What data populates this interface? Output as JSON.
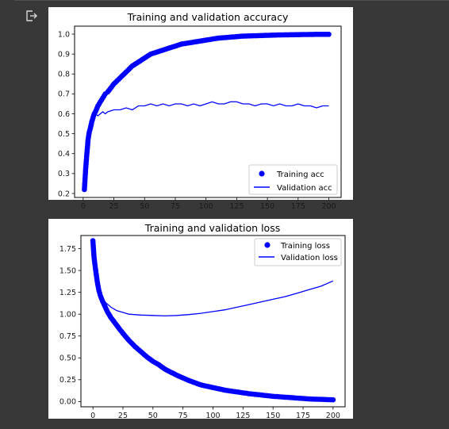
{
  "output": {
    "icon": "output-redirect-icon"
  },
  "colors": {
    "series": "#0000ff",
    "panel": "#ffffff",
    "page": "#383838"
  },
  "chart_data": [
    {
      "type": "line",
      "title": "Training and validation accuracy",
      "xlabel": "",
      "ylabel": "",
      "xlim": [
        -7,
        210
      ],
      "ylim": [
        0.18,
        1.04
      ],
      "xticks": [
        "0",
        "25",
        "50",
        "75",
        "100",
        "125",
        "150",
        "175",
        "200"
      ],
      "yticks": [
        "0.2",
        "0.3",
        "0.4",
        "0.5",
        "0.6",
        "0.7",
        "0.8",
        "0.9",
        "1.0"
      ],
      "legend_position": "bottom-right",
      "series": [
        {
          "name": "Training acc",
          "style": "dots",
          "x": [
            1,
            2,
            3,
            4,
            5,
            6,
            7,
            8,
            9,
            10,
            12,
            14,
            16,
            18,
            20,
            25,
            30,
            35,
            40,
            45,
            50,
            55,
            60,
            70,
            80,
            90,
            100,
            110,
            120,
            130,
            140,
            150,
            160,
            170,
            180,
            190,
            200
          ],
          "values": [
            0.22,
            0.32,
            0.4,
            0.47,
            0.51,
            0.53,
            0.56,
            0.58,
            0.6,
            0.61,
            0.64,
            0.66,
            0.68,
            0.7,
            0.71,
            0.75,
            0.78,
            0.81,
            0.84,
            0.86,
            0.88,
            0.9,
            0.91,
            0.93,
            0.95,
            0.96,
            0.97,
            0.98,
            0.985,
            0.99,
            0.992,
            0.994,
            0.996,
            0.997,
            0.998,
            0.999,
            0.999
          ]
        },
        {
          "name": "Validation acc",
          "style": "line",
          "x": [
            1,
            2,
            3,
            4,
            5,
            6,
            8,
            10,
            12,
            14,
            16,
            18,
            20,
            25,
            30,
            35,
            40,
            45,
            50,
            55,
            60,
            65,
            70,
            75,
            80,
            85,
            90,
            95,
            100,
            105,
            110,
            115,
            120,
            125,
            130,
            135,
            140,
            145,
            150,
            155,
            160,
            165,
            170,
            175,
            180,
            185,
            190,
            195,
            200
          ],
          "values": [
            0.36,
            0.43,
            0.49,
            0.52,
            0.55,
            0.57,
            0.58,
            0.6,
            0.59,
            0.6,
            0.61,
            0.6,
            0.61,
            0.62,
            0.62,
            0.63,
            0.62,
            0.64,
            0.64,
            0.65,
            0.64,
            0.65,
            0.64,
            0.65,
            0.65,
            0.64,
            0.65,
            0.64,
            0.65,
            0.66,
            0.65,
            0.65,
            0.66,
            0.66,
            0.65,
            0.65,
            0.64,
            0.65,
            0.65,
            0.64,
            0.65,
            0.64,
            0.64,
            0.65,
            0.64,
            0.64,
            0.63,
            0.64,
            0.64
          ]
        }
      ]
    },
    {
      "type": "line",
      "title": "Training and validation loss",
      "xlabel": "",
      "ylabel": "",
      "xlim": [
        -10,
        210
      ],
      "ylim": [
        -0.06,
        1.9
      ],
      "xticks": [
        "0",
        "25",
        "50",
        "75",
        "100",
        "125",
        "150",
        "175",
        "200"
      ],
      "yticks": [
        "0.00",
        "0.25",
        "0.50",
        "0.75",
        "1.00",
        "1.25",
        "1.50",
        "1.75"
      ],
      "legend_position": "top-right",
      "series": [
        {
          "name": "Training loss",
          "style": "dots",
          "x": [
            0,
            1,
            2,
            3,
            4,
            5,
            6,
            8,
            10,
            12,
            15,
            20,
            25,
            30,
            35,
            40,
            45,
            50,
            55,
            60,
            70,
            80,
            90,
            100,
            110,
            120,
            130,
            140,
            150,
            160,
            170,
            180,
            190,
            200
          ],
          "values": [
            1.84,
            1.64,
            1.53,
            1.43,
            1.34,
            1.27,
            1.22,
            1.15,
            1.09,
            1.03,
            0.96,
            0.87,
            0.78,
            0.7,
            0.63,
            0.57,
            0.51,
            0.46,
            0.42,
            0.37,
            0.3,
            0.24,
            0.19,
            0.16,
            0.13,
            0.11,
            0.09,
            0.075,
            0.06,
            0.05,
            0.04,
            0.03,
            0.025,
            0.02
          ]
        },
        {
          "name": "Validation loss",
          "style": "line",
          "x": [
            5,
            6,
            8,
            10,
            15,
            20,
            25,
            30,
            40,
            50,
            60,
            70,
            80,
            90,
            100,
            110,
            120,
            130,
            140,
            150,
            160,
            170,
            180,
            190,
            200
          ],
          "values": [
            1.3,
            1.23,
            1.18,
            1.14,
            1.08,
            1.04,
            1.02,
            1.0,
            0.99,
            0.985,
            0.98,
            0.985,
            0.995,
            1.01,
            1.03,
            1.05,
            1.08,
            1.11,
            1.14,
            1.17,
            1.2,
            1.24,
            1.28,
            1.32,
            1.38
          ]
        }
      ]
    }
  ]
}
